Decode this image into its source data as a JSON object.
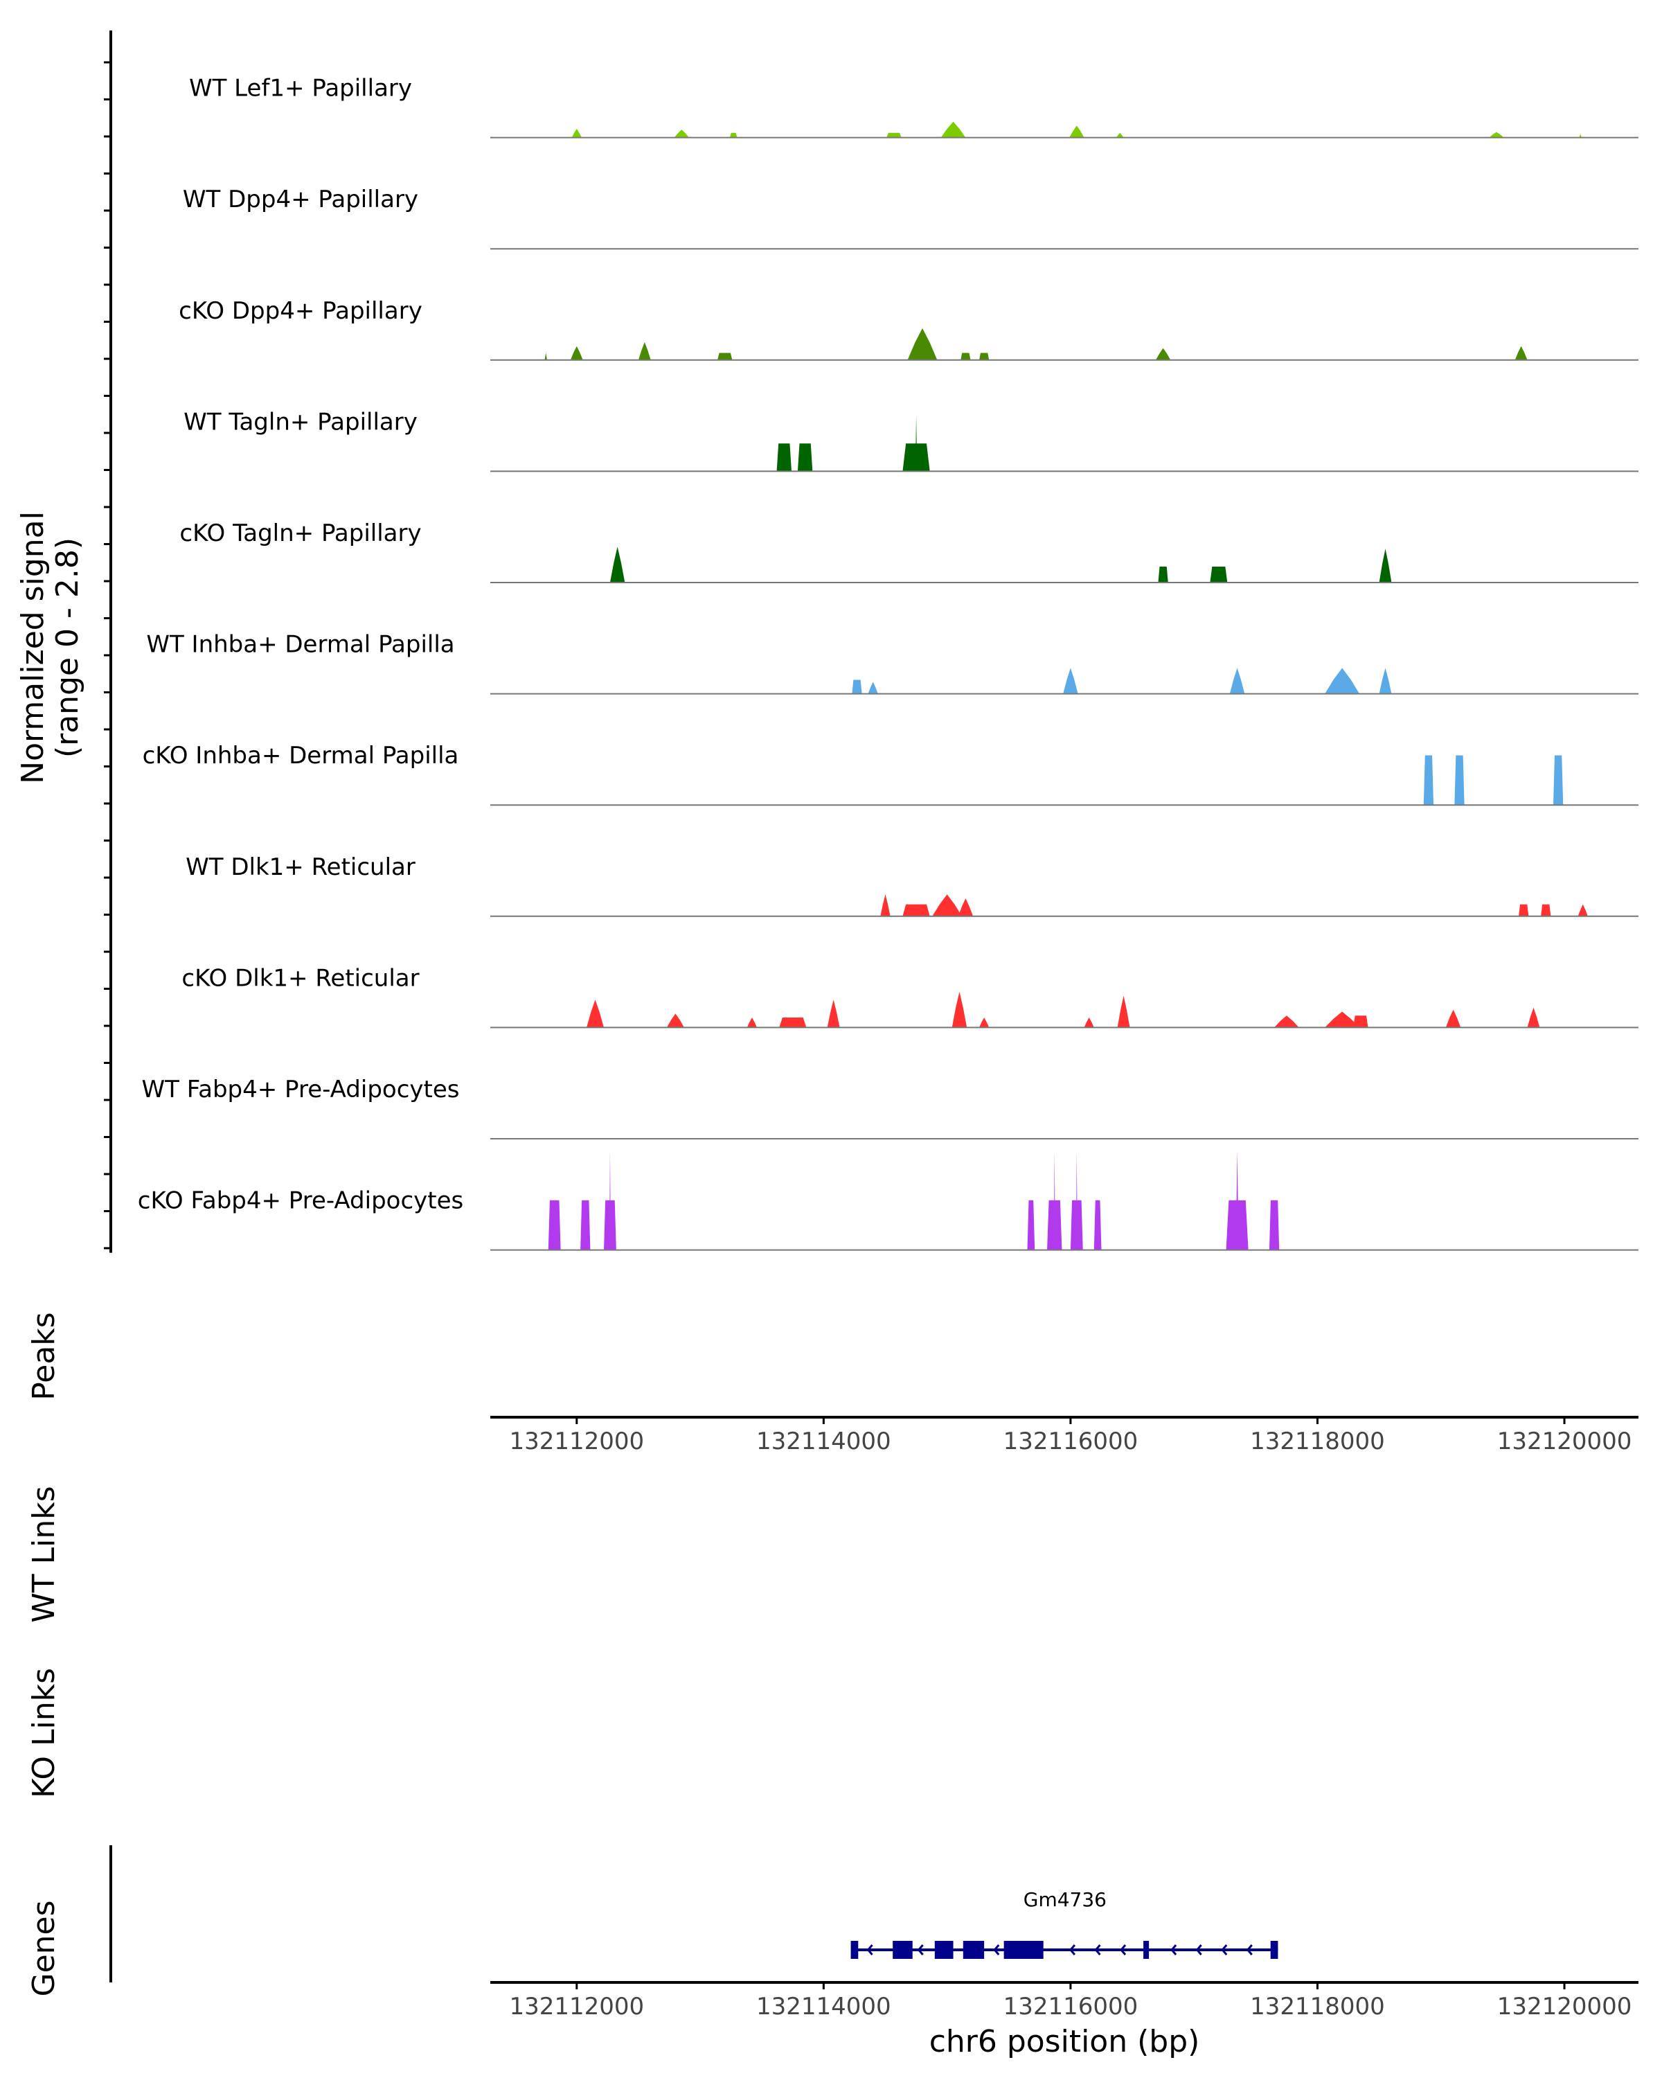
{
  "chart_data": {
    "type": "area",
    "title": "",
    "region": "chr6",
    "xlim": [
      132111300,
      132120600
    ],
    "x_ticks": [
      {
        "value": 132112000,
        "label": "132112000"
      },
      {
        "value": 132114000,
        "label": "132114000"
      },
      {
        "value": 132116000,
        "label": "132116000"
      },
      {
        "value": 132118000,
        "label": "132118000"
      },
      {
        "value": 132120000,
        "label": "132120000"
      }
    ],
    "xlabel": "chr6 position (bp)",
    "ylabel_line1": "Normalized signal",
    "ylabel_line2": "(range 0 - 2.8)",
    "ylim": [
      0,
      2.8
    ],
    "panel_labels": {
      "peaks": "Peaks",
      "wt_links": "WT Links",
      "ko_links": "KO Links",
      "genes": "Genes"
    },
    "tracks": [
      {
        "name": "WT Lef1+ Papillary",
        "color": "#7CCD00",
        "peaks": [
          [
            132112000,
            0.22,
            40,
            0
          ],
          [
            132112850,
            0.2,
            60,
            0
          ],
          [
            132113270,
            0.12,
            30,
            1
          ],
          [
            132114570,
            0.12,
            60,
            1
          ],
          [
            132115050,
            0.4,
            100,
            0
          ],
          [
            132116050,
            0.3,
            60,
            0
          ],
          [
            132116400,
            0.12,
            30,
            0
          ],
          [
            132119450,
            0.14,
            60,
            0
          ],
          [
            132120130,
            0.1,
            10,
            1
          ]
        ]
      },
      {
        "name": "WT Dpp4+ Papillary",
        "color": "#7CCD00",
        "peaks": []
      },
      {
        "name": "cKO Dpp4+ Papillary",
        "color": "#4A8A00",
        "peaks": [
          [
            132111750,
            0.2,
            10,
            1
          ],
          [
            132112000,
            0.35,
            50,
            0
          ],
          [
            132112550,
            0.45,
            50,
            0
          ],
          [
            132113200,
            0.18,
            60,
            1
          ],
          [
            132114800,
            0.8,
            120,
            0
          ],
          [
            132115150,
            0.18,
            40,
            1
          ],
          [
            132115300,
            0.18,
            40,
            1
          ],
          [
            132116750,
            0.3,
            60,
            0
          ],
          [
            132119650,
            0.35,
            50,
            0
          ]
        ]
      },
      {
        "name": "WT Tagln+ Papillary",
        "color": "#006400",
        "peaks": [
          [
            132113680,
            0.7,
            60,
            1
          ],
          [
            132113850,
            0.7,
            60,
            1
          ],
          [
            132114750,
            0.7,
            110,
            1
          ],
          [
            132114750,
            1.4,
            6,
            0
          ]
        ]
      },
      {
        "name": "cKO Tagln+ Papillary",
        "color": "#006400",
        "peaks": [
          [
            132112330,
            0.9,
            60,
            0
          ],
          [
            132116750,
            0.4,
            40,
            1
          ],
          [
            132117200,
            0.4,
            70,
            1
          ],
          [
            132118550,
            0.85,
            50,
            0
          ]
        ]
      },
      {
        "name": "WT Inhba+ Dermal Papilla",
        "color": "#5AAAE8",
        "peaks": [
          [
            132114270,
            0.35,
            40,
            1
          ],
          [
            132114400,
            0.3,
            40,
            0
          ],
          [
            132116000,
            0.65,
            60,
            0
          ],
          [
            132117350,
            0.65,
            60,
            0
          ],
          [
            132118200,
            0.65,
            140,
            0
          ],
          [
            132118550,
            0.65,
            50,
            0
          ]
        ]
      },
      {
        "name": "cKO Inhba+ Dermal Papilla",
        "color": "#5AAAE8",
        "peaks": [
          [
            132118900,
            1.25,
            40,
            1
          ],
          [
            132119150,
            1.25,
            40,
            1
          ],
          [
            132119950,
            1.25,
            40,
            1
          ]
        ]
      },
      {
        "name": "WT Dlk1+ Reticular",
        "color": "#FF3030",
        "peaks": [
          [
            132114500,
            0.55,
            40,
            0
          ],
          [
            132114750,
            0.3,
            110,
            1
          ],
          [
            132115000,
            0.55,
            120,
            0
          ],
          [
            132115150,
            0.45,
            60,
            0
          ],
          [
            132119670,
            0.3,
            40,
            1
          ],
          [
            132119850,
            0.3,
            40,
            1
          ],
          [
            132120150,
            0.3,
            40,
            0
          ]
        ]
      },
      {
        "name": "cKO Dlk1+ Reticular",
        "color": "#FF3030",
        "peaks": [
          [
            132112150,
            0.7,
            70,
            0
          ],
          [
            132112800,
            0.35,
            70,
            0
          ],
          [
            132113420,
            0.25,
            40,
            0
          ],
          [
            132113750,
            0.25,
            110,
            1
          ],
          [
            132114080,
            0.7,
            50,
            0
          ],
          [
            132115100,
            0.9,
            60,
            0
          ],
          [
            132115300,
            0.25,
            40,
            0
          ],
          [
            132116150,
            0.25,
            40,
            0
          ],
          [
            132116430,
            0.8,
            50,
            0
          ],
          [
            132117750,
            0.3,
            100,
            0
          ],
          [
            132118200,
            0.4,
            140,
            0
          ],
          [
            132118350,
            0.3,
            60,
            1
          ],
          [
            132119100,
            0.45,
            60,
            0
          ],
          [
            132119750,
            0.5,
            50,
            0
          ]
        ]
      },
      {
        "name": "WT Fabp4+ Pre-Adipocytes",
        "color": "#B23AEE",
        "peaks": []
      },
      {
        "name": "cKO Fabp4+ Pre-Adipocytes",
        "color": "#B23AEE",
        "peaks": [
          [
            132111820,
            1.25,
            50,
            1
          ],
          [
            132112070,
            1.25,
            40,
            1
          ],
          [
            132112270,
            1.25,
            50,
            1
          ],
          [
            132112270,
            2.5,
            5,
            0
          ],
          [
            132115680,
            1.25,
            30,
            1
          ],
          [
            132115870,
            1.25,
            60,
            1
          ],
          [
            132115870,
            2.5,
            5,
            0
          ],
          [
            132116050,
            1.25,
            50,
            1
          ],
          [
            132116050,
            2.5,
            5,
            0
          ],
          [
            132116220,
            1.25,
            30,
            1
          ],
          [
            132117350,
            1.25,
            90,
            1
          ],
          [
            132117350,
            2.5,
            10,
            0
          ],
          [
            132117650,
            1.25,
            40,
            1
          ]
        ]
      }
    ],
    "gene": {
      "name": "Gm4736",
      "start": 132114230,
      "end": 132117680,
      "strand": "-",
      "exons": [
        [
          132114220,
          132114280
        ],
        [
          132114560,
          132114720
        ],
        [
          132114900,
          132115050
        ],
        [
          132115130,
          132115300
        ],
        [
          132115460,
          132115780
        ],
        [
          132116590,
          132116610
        ],
        [
          132117620,
          132117680
        ]
      ]
    }
  }
}
